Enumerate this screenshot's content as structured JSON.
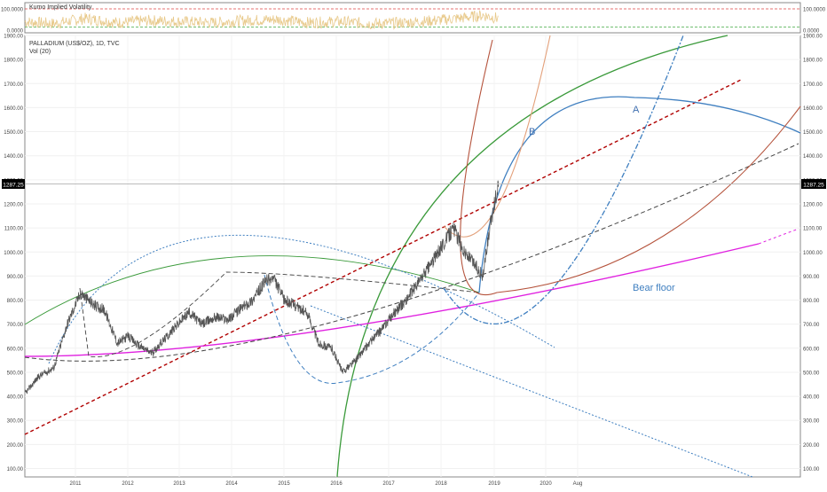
{
  "header": {
    "symbol_line": "PALLADIUM (US$/OZ), 1D, TVC",
    "indicator_line": "Vol (20)",
    "volatility_title": "Kumo Implied Volatility"
  },
  "price_badge": "1287.25",
  "labels": {
    "a": "A",
    "b": "B",
    "bear_floor": "Bear floor"
  },
  "colors": {
    "price": "#555555",
    "blue": "#3f7fc0",
    "green": "#3a9a3a",
    "dark_red": "#b00000",
    "red_brown": "#b5533c",
    "salmon": "#e3a07a",
    "magenta": "#e020e0",
    "grey_dash": "#444444",
    "vol_line": "#e8c98a"
  },
  "chart_data": [
    {
      "type": "line",
      "title": "PALLADIUM (US$/OZ), 1D, TVC",
      "x_ticks": [
        "2011",
        "2012",
        "2013",
        "2014",
        "2015",
        "2016",
        "2017",
        "2018",
        "2019",
        "2020",
        "Aug"
      ],
      "y_ticks": [
        "100.00",
        "200.00",
        "300.00",
        "400.00",
        "500.00",
        "600.00",
        "700.00",
        "800.00",
        "900.00",
        "1000.00",
        "1100.00",
        "1200.00",
        "1300.00",
        "1400.00",
        "1500.00",
        "1600.00",
        "1700.00",
        "1800.00",
        "1900.00"
      ],
      "ylim": [
        65,
        1900
      ],
      "xlim": [
        2010.05,
        2024.7
      ],
      "last_price": 1287.25,
      "series": [
        {
          "kind": "price",
          "x": [
            2010.05,
            2010.3,
            2010.6,
            2010.85,
            2011.1,
            2011.35,
            2011.55,
            2011.8,
            2012.0,
            2012.2,
            2012.45,
            2012.7,
            2012.9,
            2013.15,
            2013.4,
            2013.65,
            2013.9,
            2014.1,
            2014.35,
            2014.6,
            2014.75,
            2014.95,
            2015.15,
            2015.4,
            2015.6,
            2015.85,
            2016.05,
            2016.3,
            2016.55,
            2016.8,
            2017.0,
            2017.25,
            2017.5,
            2017.75,
            2018.0,
            2018.15,
            2018.35,
            2018.55,
            2018.7,
            2018.85,
            2019.0
          ],
          "values": [
            410,
            480,
            520,
            700,
            830,
            780,
            760,
            620,
            650,
            610,
            580,
            640,
            690,
            750,
            700,
            730,
            720,
            760,
            800,
            880,
            890,
            800,
            780,
            740,
            620,
            600,
            500,
            550,
            620,
            680,
            740,
            800,
            880,
            960,
            1050,
            1100,
            1000,
            950,
            900,
            1120,
            1287
          ]
        },
        {
          "kind": "kumo_implied_volatility",
          "ylim": [
            0,
            100
          ],
          "x": [
            2010.05,
            2010.6,
            2011.2,
            2011.8,
            2012.4,
            2013.0,
            2013.6,
            2014.2,
            2014.8,
            2015.4,
            2016.0,
            2016.6,
            2017.2,
            2017.8,
            2018.4,
            2018.7,
            2019.0
          ],
          "values": [
            40,
            30,
            55,
            35,
            45,
            40,
            35,
            45,
            50,
            35,
            40,
            30,
            35,
            45,
            60,
            70,
            55
          ]
        }
      ]
    }
  ]
}
